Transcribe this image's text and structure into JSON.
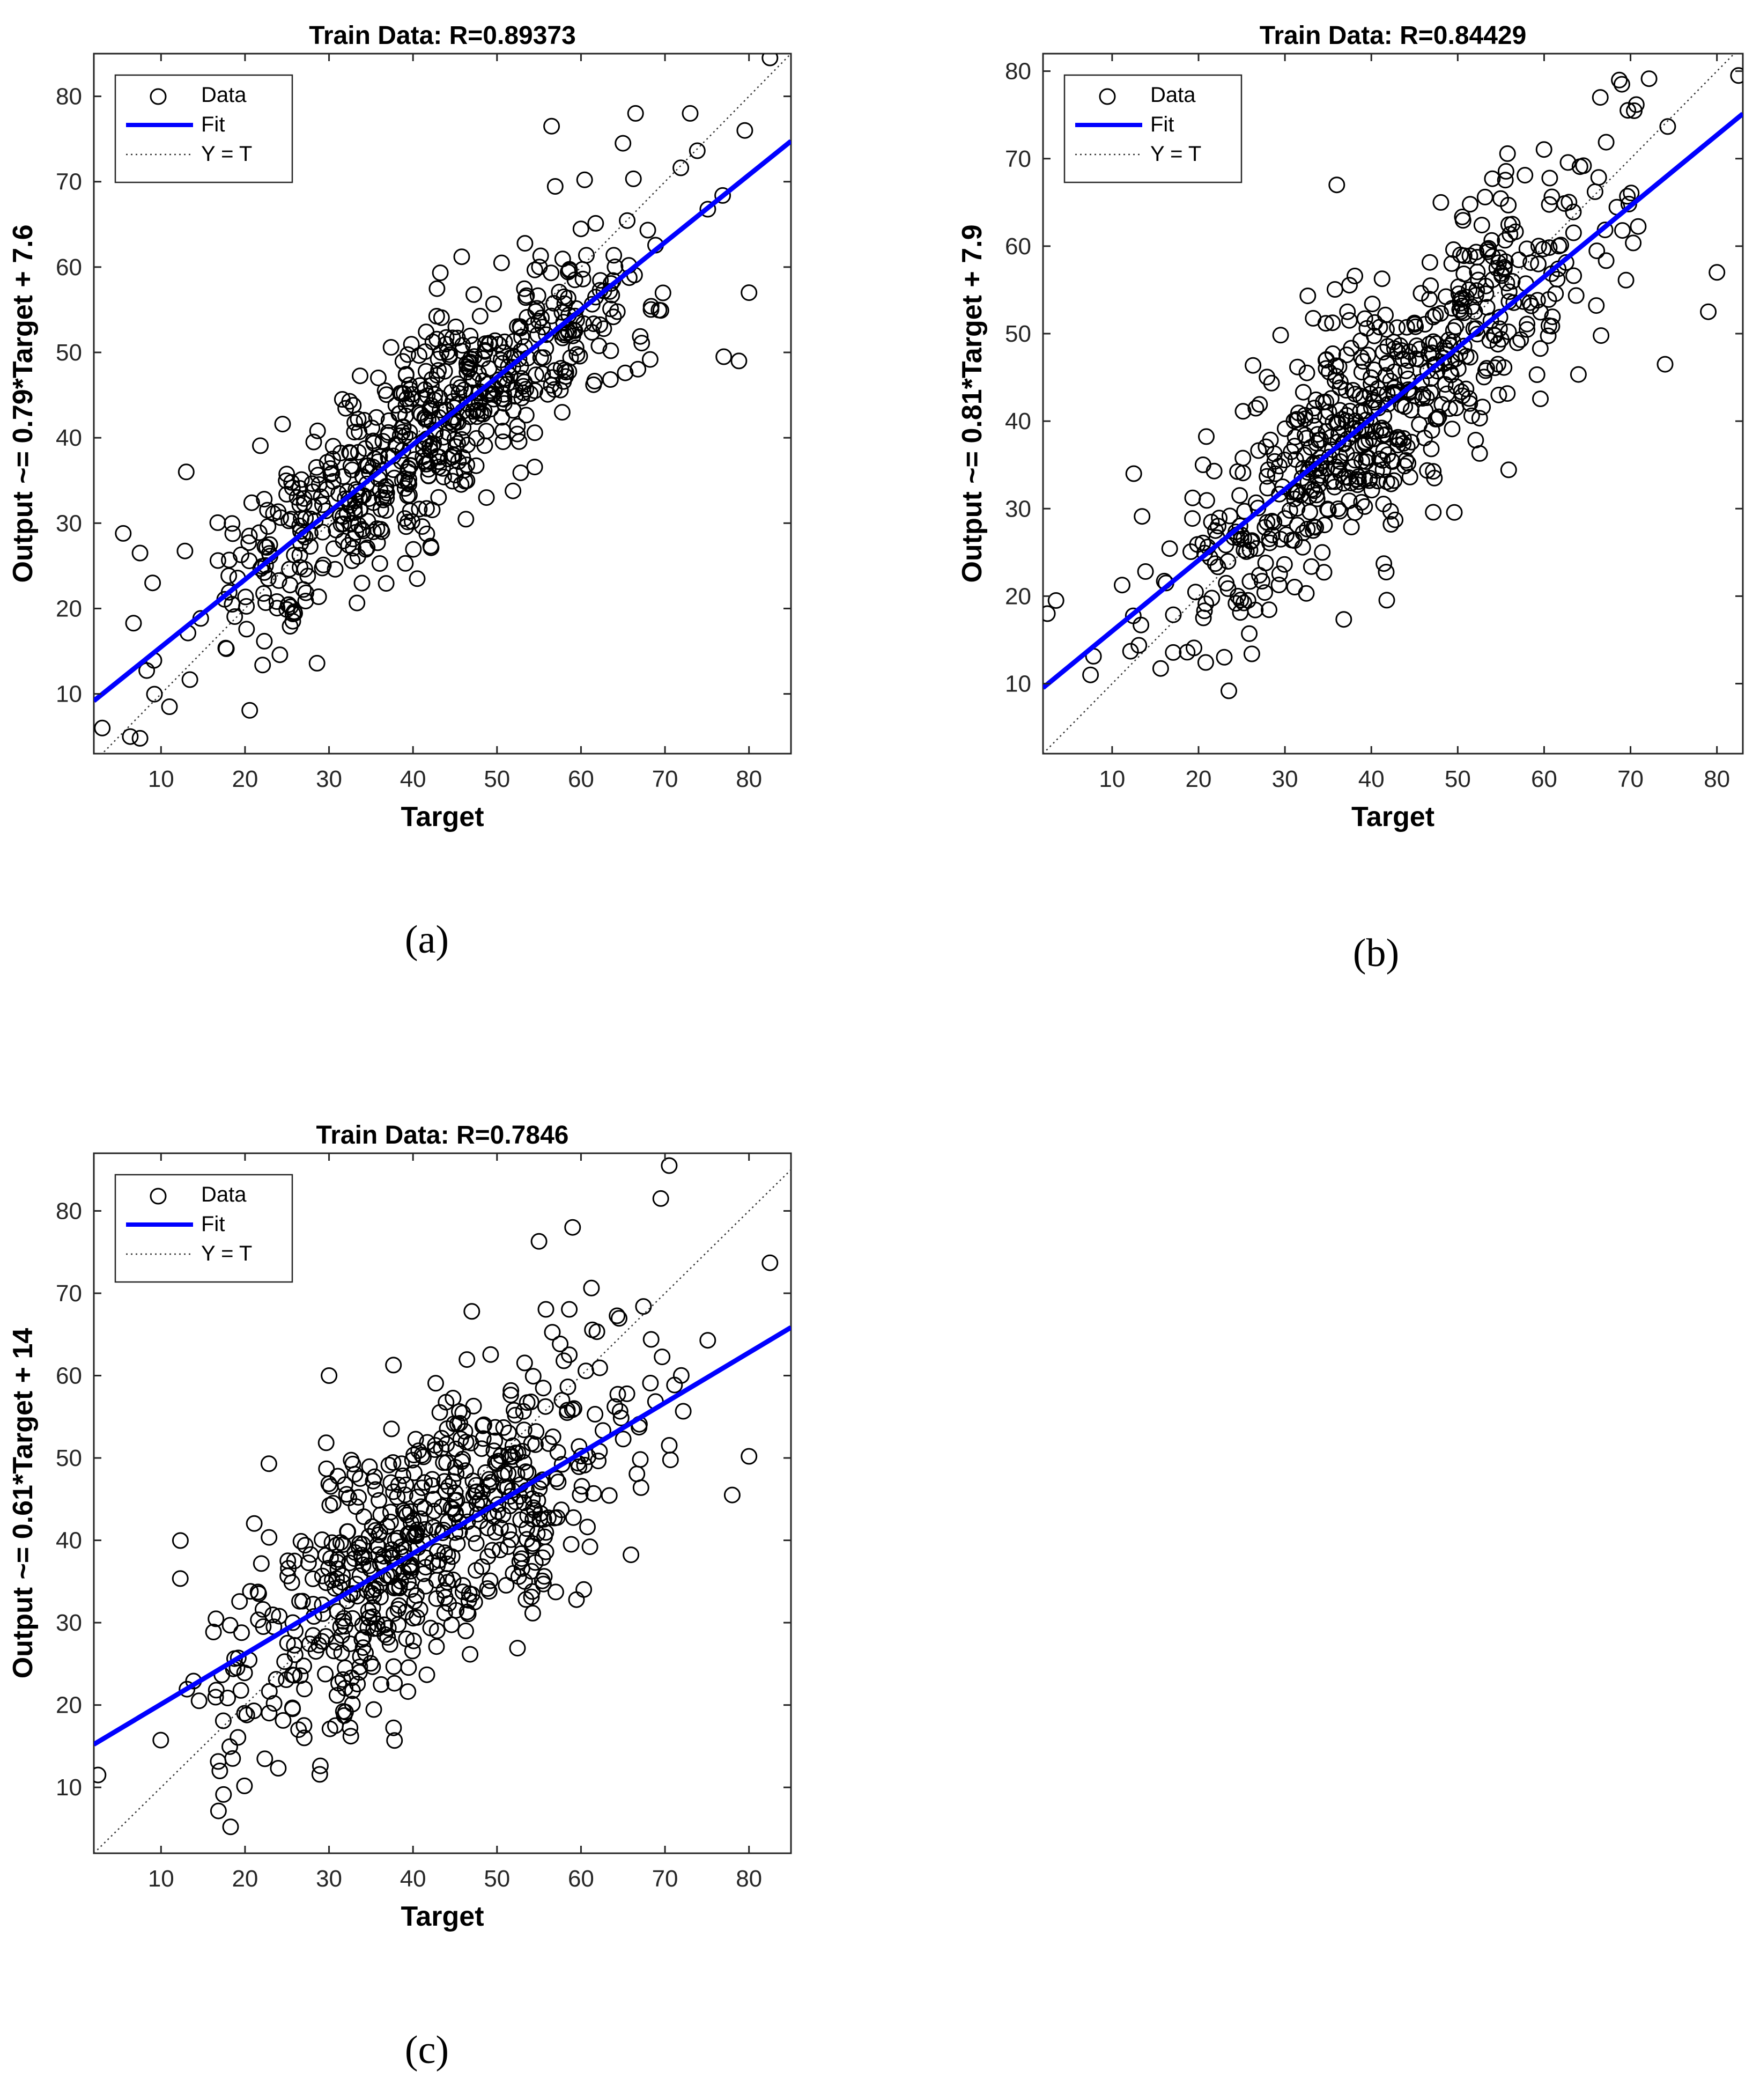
{
  "figure": {
    "panel_labels": [
      "(a)",
      "(b)",
      "(c)"
    ]
  },
  "chart_data": [
    {
      "type": "scatter",
      "panel": "a",
      "title": "Train Data: R=0.89373",
      "xlabel": "Target",
      "ylabel": "Output ~= 0.79*Target + 7.6",
      "xlim": [
        2,
        85
      ],
      "ylim": [
        3,
        85
      ],
      "xticks": [
        10,
        20,
        30,
        40,
        50,
        60,
        70,
        80
      ],
      "yticks": [
        10,
        20,
        30,
        40,
        50,
        60,
        70,
        80
      ],
      "fit": {
        "slope": 0.79,
        "intercept": 7.6
      },
      "R": 0.89373,
      "n_points": 620,
      "seed": 11,
      "noise_sd": 6.0,
      "x_range": [
        3,
        80
      ],
      "legend": {
        "position": "top-left",
        "entries": [
          "Data",
          "Fit",
          "Y = T"
        ]
      },
      "points": [
        [
          3,
          6
        ],
        [
          82.5,
          84.5
        ],
        [
          56.5,
          76.5
        ],
        [
          66.5,
          78
        ],
        [
          73,
          78
        ],
        [
          65,
          74.5
        ],
        [
          79.5,
          76
        ],
        [
          80,
          57
        ],
        [
          77,
          49.5
        ],
        [
          78.8,
          49
        ],
        [
          40.5,
          23.5
        ],
        [
          13,
          36
        ],
        [
          5.5,
          28.8
        ],
        [
          7.5,
          26.5
        ],
        [
          7.5,
          4.8
        ],
        [
          9,
          23
        ],
        [
          11,
          8.5
        ]
      ]
    },
    {
      "type": "scatter",
      "panel": "b",
      "title": "Train Data: R=0.84429",
      "xlabel": "Target",
      "ylabel": "Output ~= 0.81*Target + 7.9",
      "xlim": [
        2,
        83
      ],
      "ylim": [
        2,
        82
      ],
      "xticks": [
        10,
        20,
        30,
        40,
        50,
        60,
        70,
        80
      ],
      "yticks": [
        10,
        20,
        30,
        40,
        50,
        60,
        70,
        80
      ],
      "fit": {
        "slope": 0.81,
        "intercept": 7.9
      },
      "R": 0.84429,
      "n_points": 620,
      "seed": 23,
      "noise_sd": 7.0,
      "x_range": [
        4,
        80
      ],
      "legend": {
        "position": "top-left",
        "entries": [
          "Data",
          "Fit",
          "Y = T"
        ]
      },
      "points": [
        [
          2.5,
          18
        ],
        [
          82.5,
          79.5
        ],
        [
          36,
          67
        ],
        [
          69,
          78.5
        ],
        [
          66.5,
          77
        ],
        [
          74,
          46.5
        ],
        [
          79,
          52.5
        ],
        [
          80,
          57
        ],
        [
          12.5,
          34
        ],
        [
          7.5,
          11
        ],
        [
          3.5,
          19.5
        ]
      ]
    },
    {
      "type": "scatter",
      "panel": "c",
      "title": "Train Data: R=0.7846",
      "xlabel": "Target",
      "ylabel": "Output ~= 0.61*Target + 14",
      "xlim": [
        2,
        85
      ],
      "ylim": [
        2,
        87
      ],
      "xticks": [
        10,
        20,
        30,
        40,
        50,
        60,
        70,
        80
      ],
      "yticks": [
        10,
        20,
        30,
        40,
        50,
        60,
        70,
        80
      ],
      "fit": {
        "slope": 0.61,
        "intercept": 14
      },
      "R": 0.7846,
      "n_points": 620,
      "seed": 37,
      "noise_sd": 8.0,
      "x_range": [
        3,
        80
      ],
      "legend": {
        "position": "top-left",
        "entries": [
          "Data",
          "Fit",
          "Y = T"
        ]
      },
      "points": [
        [
          70.5,
          85.5
        ],
        [
          69.5,
          81.5
        ],
        [
          55,
          76.3
        ],
        [
          59,
          78
        ],
        [
          82.5,
          73.7
        ],
        [
          78,
          45.5
        ],
        [
          80,
          50.2
        ],
        [
          2.5,
          11.5
        ],
        [
          17,
          12
        ],
        [
          30,
          60
        ],
        [
          47,
          67.8
        ]
      ]
    }
  ]
}
